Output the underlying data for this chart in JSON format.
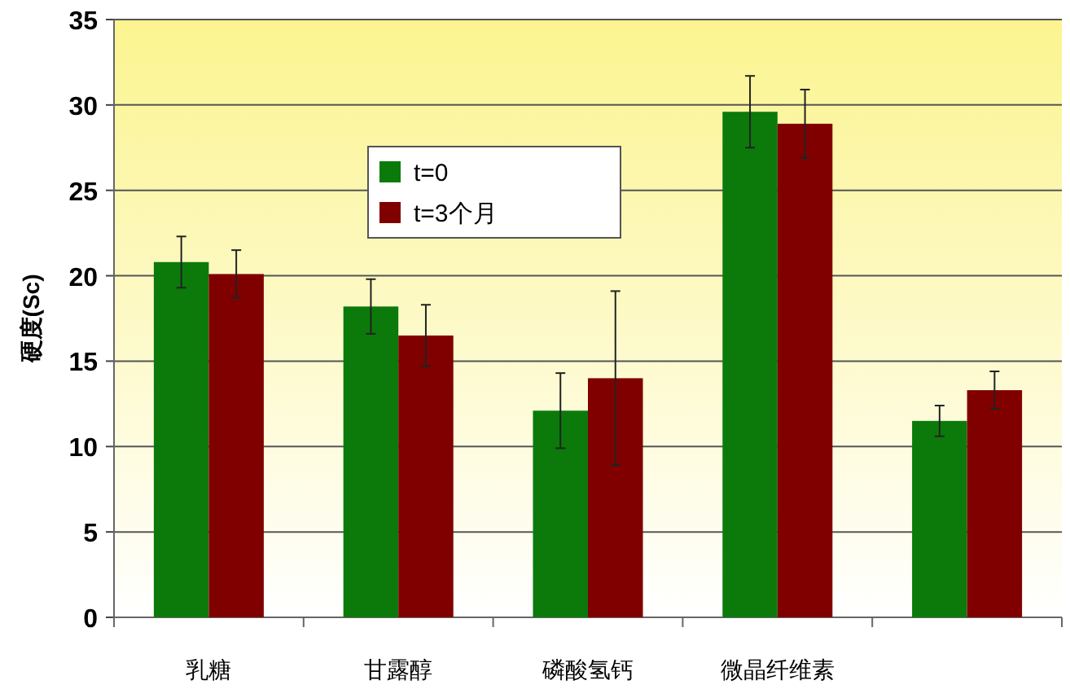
{
  "chart_data": {
    "type": "bar",
    "ylabel": "硬度(Sc)",
    "categories": [
      "乳糖",
      "甘露醇",
      "磷酸氢钙",
      "微晶纤维素",
      null
    ],
    "series": [
      {
        "name": "t=0",
        "color": "#0b7a0b",
        "values": [
          20.8,
          18.2,
          12.1,
          29.6,
          11.5
        ],
        "errors": [
          1.5,
          1.6,
          2.2,
          2.1,
          0.9
        ]
      },
      {
        "name": "t=3个月",
        "color": "#800000",
        "values": [
          20.1,
          16.5,
          14.0,
          28.9,
          13.3
        ],
        "errors": [
          1.4,
          1.8,
          5.1,
          2.0,
          1.1
        ]
      }
    ],
    "ylim": [
      0,
      35
    ],
    "yticks": [
      0,
      5,
      10,
      15,
      20,
      25,
      30,
      35
    ],
    "grid": "y",
    "legend": "top"
  }
}
